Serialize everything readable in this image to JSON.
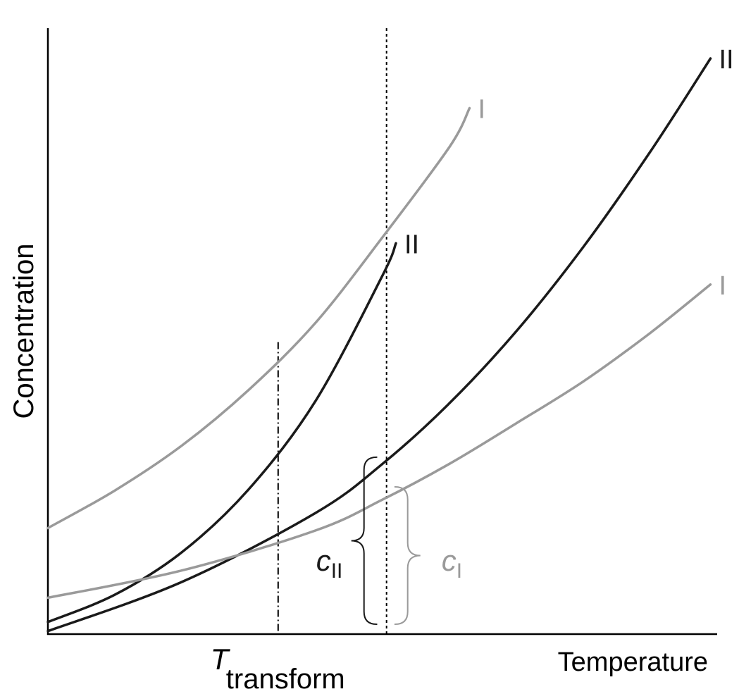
{
  "chart_data": {
    "type": "line",
    "xlabel": "Temperature",
    "ylabel": "Concentration",
    "xlim": [
      0,
      100
    ],
    "ylim": [
      0,
      100
    ],
    "grid": false,
    "legend": "none",
    "colors": {
      "form_I": "#9a9a9a",
      "form_II": "#1a1a1a",
      "axis": "#000000"
    },
    "series": [
      {
        "name": "II",
        "form": "II",
        "color": "#1a1a1a",
        "points": [
          [
            0,
            2
          ],
          [
            10,
            6.5
          ],
          [
            20,
            13.5
          ],
          [
            30,
            23.9
          ],
          [
            40,
            38.5
          ],
          [
            50,
            59.2
          ],
          [
            52,
            64.5
          ]
        ]
      },
      {
        "name": "I",
        "form": "I",
        "color": "#9a9a9a",
        "points": [
          [
            0,
            17.5
          ],
          [
            10,
            23.7
          ],
          [
            20,
            31.1
          ],
          [
            30,
            40.3
          ],
          [
            40,
            51.4
          ],
          [
            50,
            65.5
          ],
          [
            60,
            80.4
          ],
          [
            63,
            86.8
          ]
        ]
      },
      {
        "name": "II",
        "form": "II",
        "color": "#1a1a1a",
        "points": [
          [
            0,
            0.5
          ],
          [
            20,
            8.6
          ],
          [
            40,
            20
          ],
          [
            50,
            28.1
          ],
          [
            60,
            38.1
          ],
          [
            70,
            50
          ],
          [
            80,
            63.9
          ],
          [
            90,
            79.6
          ],
          [
            99,
            95
          ]
        ]
      },
      {
        "name": "I",
        "form": "I",
        "color": "#9a9a9a",
        "points": [
          [
            0,
            6
          ],
          [
            20,
            10.5
          ],
          [
            40,
            17.1
          ],
          [
            50,
            22.2
          ],
          [
            60,
            28.1
          ],
          [
            70,
            34.8
          ],
          [
            80,
            41.7
          ],
          [
            90,
            49.7
          ],
          [
            99,
            57.7
          ]
        ]
      }
    ],
    "annotations": [
      {
        "text": "T",
        "subscript": "transform",
        "x": 34.4,
        "line": "dash-dot"
      },
      {
        "text": "c",
        "subscript": "II",
        "x": 50.6,
        "y_range": [
          0,
          29.2
        ]
      },
      {
        "text": "c",
        "subscript": "I",
        "x": 50.6,
        "y_range": [
          0,
          24.3
        ]
      }
    ]
  }
}
